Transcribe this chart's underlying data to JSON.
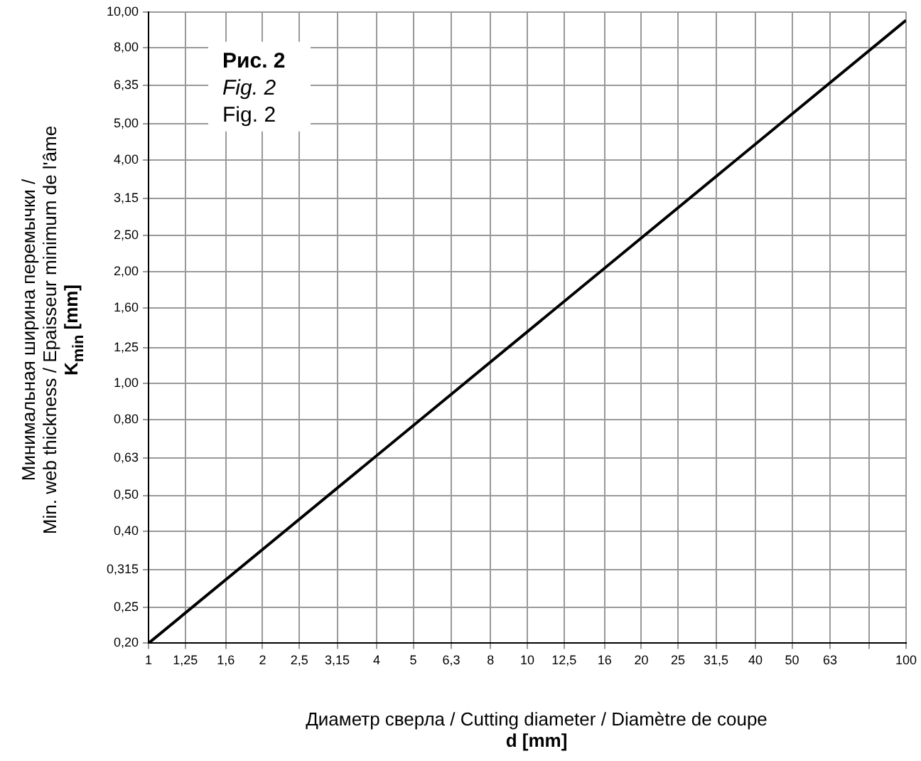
{
  "chart_data": {
    "type": "line",
    "x": [
      1,
      100
    ],
    "series": [
      {
        "color": "#000000",
        "values": [
          0.2,
          9.5
        ]
      }
    ],
    "xlim": [
      1,
      100
    ],
    "ylim": [
      0.2,
      10
    ],
    "log": "xy",
    "grid": true,
    "legend": false,
    "marker": "none",
    "line_style": "solid",
    "xticks": [
      1,
      {
        "value": 1.25,
        "label": "1,25"
      },
      {
        "value": 1.6,
        "label": "1,6"
      },
      2,
      {
        "value": 2.5,
        "label": "2,5"
      },
      {
        "value": 3.15,
        "label": "3,15"
      },
      4,
      5,
      {
        "value": 6.3,
        "label": "6,3"
      },
      8,
      10,
      {
        "value": 12.5,
        "label": "12,5"
      },
      16,
      20,
      25,
      {
        "value": 31.5,
        "label": "31,5"
      },
      40,
      50,
      63,
      {
        "value": 80,
        "label": null
      },
      100
    ],
    "yticks": [
      {
        "value": 0.2,
        "label": "0,20"
      },
      {
        "value": 0.25,
        "label": "0,25"
      },
      {
        "value": 0.315,
        "label": "0,315"
      },
      {
        "value": 0.4,
        "label": "0,40"
      },
      {
        "value": 0.5,
        "label": "0,50"
      },
      {
        "value": 0.63,
        "label": "0,63"
      },
      {
        "value": 0.8,
        "label": "0,80"
      },
      {
        "value": 1,
        "label": "1,00"
      },
      {
        "value": 1.25,
        "label": "1,25"
      },
      {
        "value": 1.6,
        "label": "1,60"
      },
      {
        "value": 2,
        "label": "2,00"
      },
      {
        "value": 2.5,
        "label": "2,50"
      },
      {
        "value": 3.15,
        "label": "3,15"
      },
      {
        "value": 4,
        "label": "4,00"
      },
      {
        "value": 5,
        "label": "5,00"
      },
      {
        "value": 6.35,
        "label": "6,35"
      },
      {
        "value": 8,
        "label": "8,00"
      },
      {
        "value": 10,
        "label": "10,00"
      }
    ],
    "xlabel": "Диаметр сверла / Cutting diameter / Diamètre de coupe\nd [mm]",
    "ylabel": "Минимальная ширина перемычки /\nMin. web thickness / Epaisseur minimum de l'âme\nK$_{min}$ [mm]",
    "annotations": [
      "Рис. 2",
      "Fig. 2",
      "Fig. 2"
    ]
  }
}
